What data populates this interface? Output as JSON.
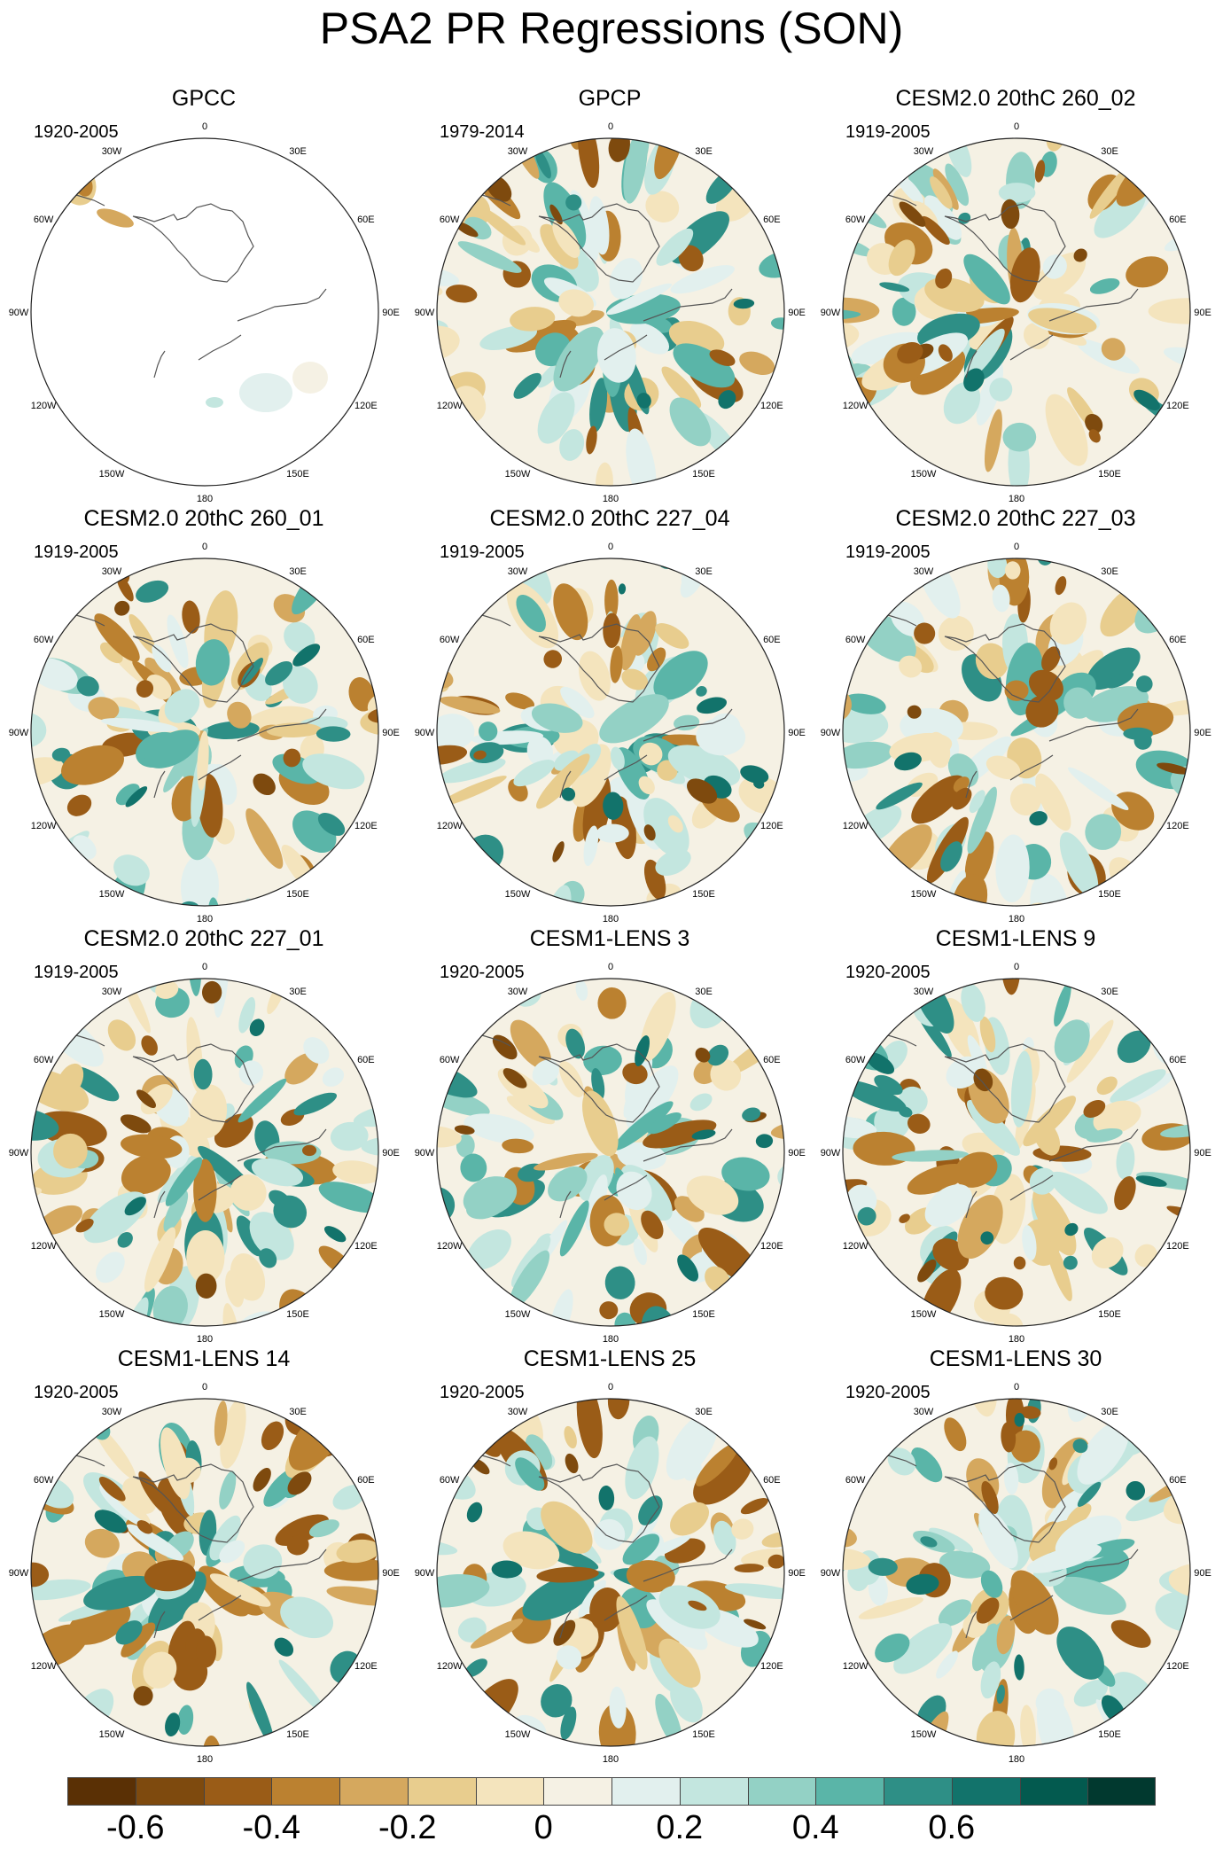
{
  "title": "PSA2 PR Regressions (SON)",
  "panels": [
    {
      "title": "GPCC",
      "years": "1920-2005",
      "masked": true
    },
    {
      "title": "GPCP",
      "years": "1979-2014"
    },
    {
      "title": "CESM2.0 20thC 260_02",
      "years": "1919-2005"
    },
    {
      "title": "CESM2.0 20thC 260_01",
      "years": "1919-2005"
    },
    {
      "title": "CESM2.0 20thC 227_04",
      "years": "1919-2005"
    },
    {
      "title": "CESM2.0 20thC 227_03",
      "years": "1919-2005"
    },
    {
      "title": "CESM2.0 20thC 227_01",
      "years": "1919-2005"
    },
    {
      "title": "CESM1-LENS 3",
      "years": "1920-2005"
    },
    {
      "title": "CESM1-LENS 9",
      "years": "1920-2005"
    },
    {
      "title": "CESM1-LENS 14",
      "years": "1920-2005"
    },
    {
      "title": "CESM1-LENS 25",
      "years": "1920-2005"
    },
    {
      "title": "CESM1-LENS 30",
      "years": "1920-2005"
    }
  ],
  "lon_labels": {
    "0": "0",
    "30E": "30E",
    "60E": "60E",
    "90E": "90E",
    "120E": "120E",
    "150E": "150E",
    "180": "180",
    "150W": "150W",
    "120W": "120W",
    "90W": "90W",
    "60W": "60W",
    "30W": "30W"
  },
  "colorbar": {
    "colors": [
      "#5a3005",
      "#7e4a0e",
      "#9a5c17",
      "#bb8130",
      "#d5a85e",
      "#e8cd8e",
      "#f4e4bd",
      "#f5f1e4",
      "#e2f0ee",
      "#c3e6df",
      "#93d1c5",
      "#5ab5a8",
      "#2e8f86",
      "#12736b",
      "#035a4f",
      "#01392f"
    ],
    "tick_labels": [
      "-0.6",
      "-0.4",
      "-0.2",
      "0",
      "0.2",
      "0.4",
      "0.6"
    ],
    "tick_positions": [
      1,
      3,
      5,
      7,
      9,
      11,
      13
    ]
  }
}
